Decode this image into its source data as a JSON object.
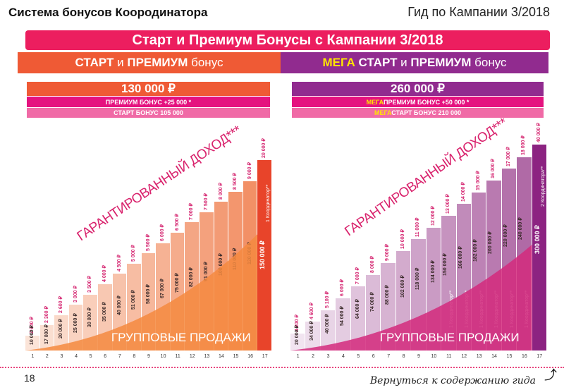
{
  "header": {
    "title": "Система бонусов Коородинатора",
    "guide": "Гид по Кампании 3/2018"
  },
  "banner": "Старт и Премиум Бонусы с  Кампании 3/2018",
  "bands": {
    "left": {
      "a": "СТАРТ",
      "b": " и ",
      "c": "ПРЕМИУМ",
      "d": " бонус"
    },
    "right": {
      "mega": "МЕГА",
      "a": " СТАРТ",
      "b": " и ",
      "c": "ПРЕМИУМ",
      "d": " бонус"
    }
  },
  "boxes": {
    "left": {
      "total": "130 000 ₽",
      "premium": "ПРЕМИУМ БОНУС +25 000 *",
      "start": "СТАРТ БОНУС 105 000"
    },
    "right": {
      "total": "260 000 ₽",
      "mega": "МЕГА",
      "premium": "ПРЕМИУМ БОНУС +50 000 *",
      "start": "СТАРТ БОНУС 210 000"
    }
  },
  "chart_data": [
    {
      "type": "bar",
      "title": "СТАРТ и ПРЕМИУМ бонус",
      "diag_label": "ГАРАНТИРОВАННЫЙ ДОХОД***",
      "area_label": "ГРУППОВЫЕ ПРОДАЖИ",
      "categories": [
        "1",
        "2",
        "3",
        "4",
        "5",
        "6",
        "7",
        "8",
        "9",
        "10",
        "11",
        "12",
        "13",
        "14",
        "15",
        "16",
        "17"
      ],
      "income": [
        "2 000 ₽",
        "2 300 ₽",
        "2 600 ₽",
        "3 000 ₽",
        "3 500 ₽",
        "4 000 ₽",
        "4 500 ₽",
        "5 000 ₽",
        "5 500 ₽",
        "6 000 ₽",
        "6 500 ₽",
        "7 000 ₽",
        "7 500 ₽",
        "8 000 ₽",
        "8 500 ₽",
        "9 000 ₽",
        "20 000 ₽"
      ],
      "sales": [
        "10 000 ₽",
        "17 000 ₽",
        "20 000 ₽",
        "25 000 ₽",
        "30 000 ₽",
        "35 000 ₽",
        "40 000 ₽",
        "51 000 ₽",
        "58 000 ₽",
        "67 000 ₽",
        "75 000 ₽",
        "82 000 ₽",
        "91 000 ₽",
        "100 000 ₽",
        "110 000 ₽",
        "120 000 ₽",
        "150 000 ₽"
      ],
      "coordinators": [
        "",
        "",
        "",
        "",
        "",
        "",
        "",
        "",
        "",
        "",
        "",
        "",
        "",
        "",
        "",
        "",
        "1 Координатор**"
      ]
    },
    {
      "type": "bar",
      "title": "МЕГА СТАРТ и ПРЕМИУМ бонус",
      "diag_label": "ГАРАНТИРОВАННЫЙ ДОХОД***",
      "area_label": "ГРУППОВЫЕ ПРОДАЖИ",
      "categories": [
        "1",
        "2",
        "3",
        "4",
        "5",
        "6",
        "7",
        "8",
        "9",
        "10",
        "11",
        "12",
        "13",
        "14",
        "15",
        "16",
        "17"
      ],
      "income": [
        "4 200 ₽",
        "4 600 ₽",
        "5 100 ₽",
        "6 000 ₽",
        "7 000 ₽",
        "8 000 ₽",
        "9 000 ₽",
        "10 000 ₽",
        "11 000 ₽",
        "12 000 ₽",
        "13 000 ₽",
        "14 000 ₽",
        "15 000 ₽",
        "16 000 ₽",
        "17 000 ₽",
        "18 000 ₽",
        "40 000 ₽"
      ],
      "sales": [
        "20 000 ₽",
        "34 000 ₽",
        "40 000 ₽",
        "54 000 ₽",
        "64 000 ₽",
        "74 000 ₽",
        "88 000 ₽",
        "102 000 ₽",
        "118 000 ₽",
        "134 000 ₽",
        "150 000 ₽",
        "166 000 ₽",
        "182 000 ₽",
        "200 000 ₽",
        "220 000 ₽",
        "240 000 ₽",
        "300 000 ₽"
      ],
      "coordinators": [
        "",
        "",
        "",
        "",
        "",
        "",
        "",
        "",
        "",
        "",
        "1 Координатор**",
        "1 Координатор**",
        "1 Координатор**",
        "1 Координатор**",
        "1 Координатор**",
        "1 Координатор**",
        "2 Координатора**"
      ]
    }
  ],
  "footer": {
    "page": "18",
    "back": "Вернуться к содержанию гида"
  }
}
